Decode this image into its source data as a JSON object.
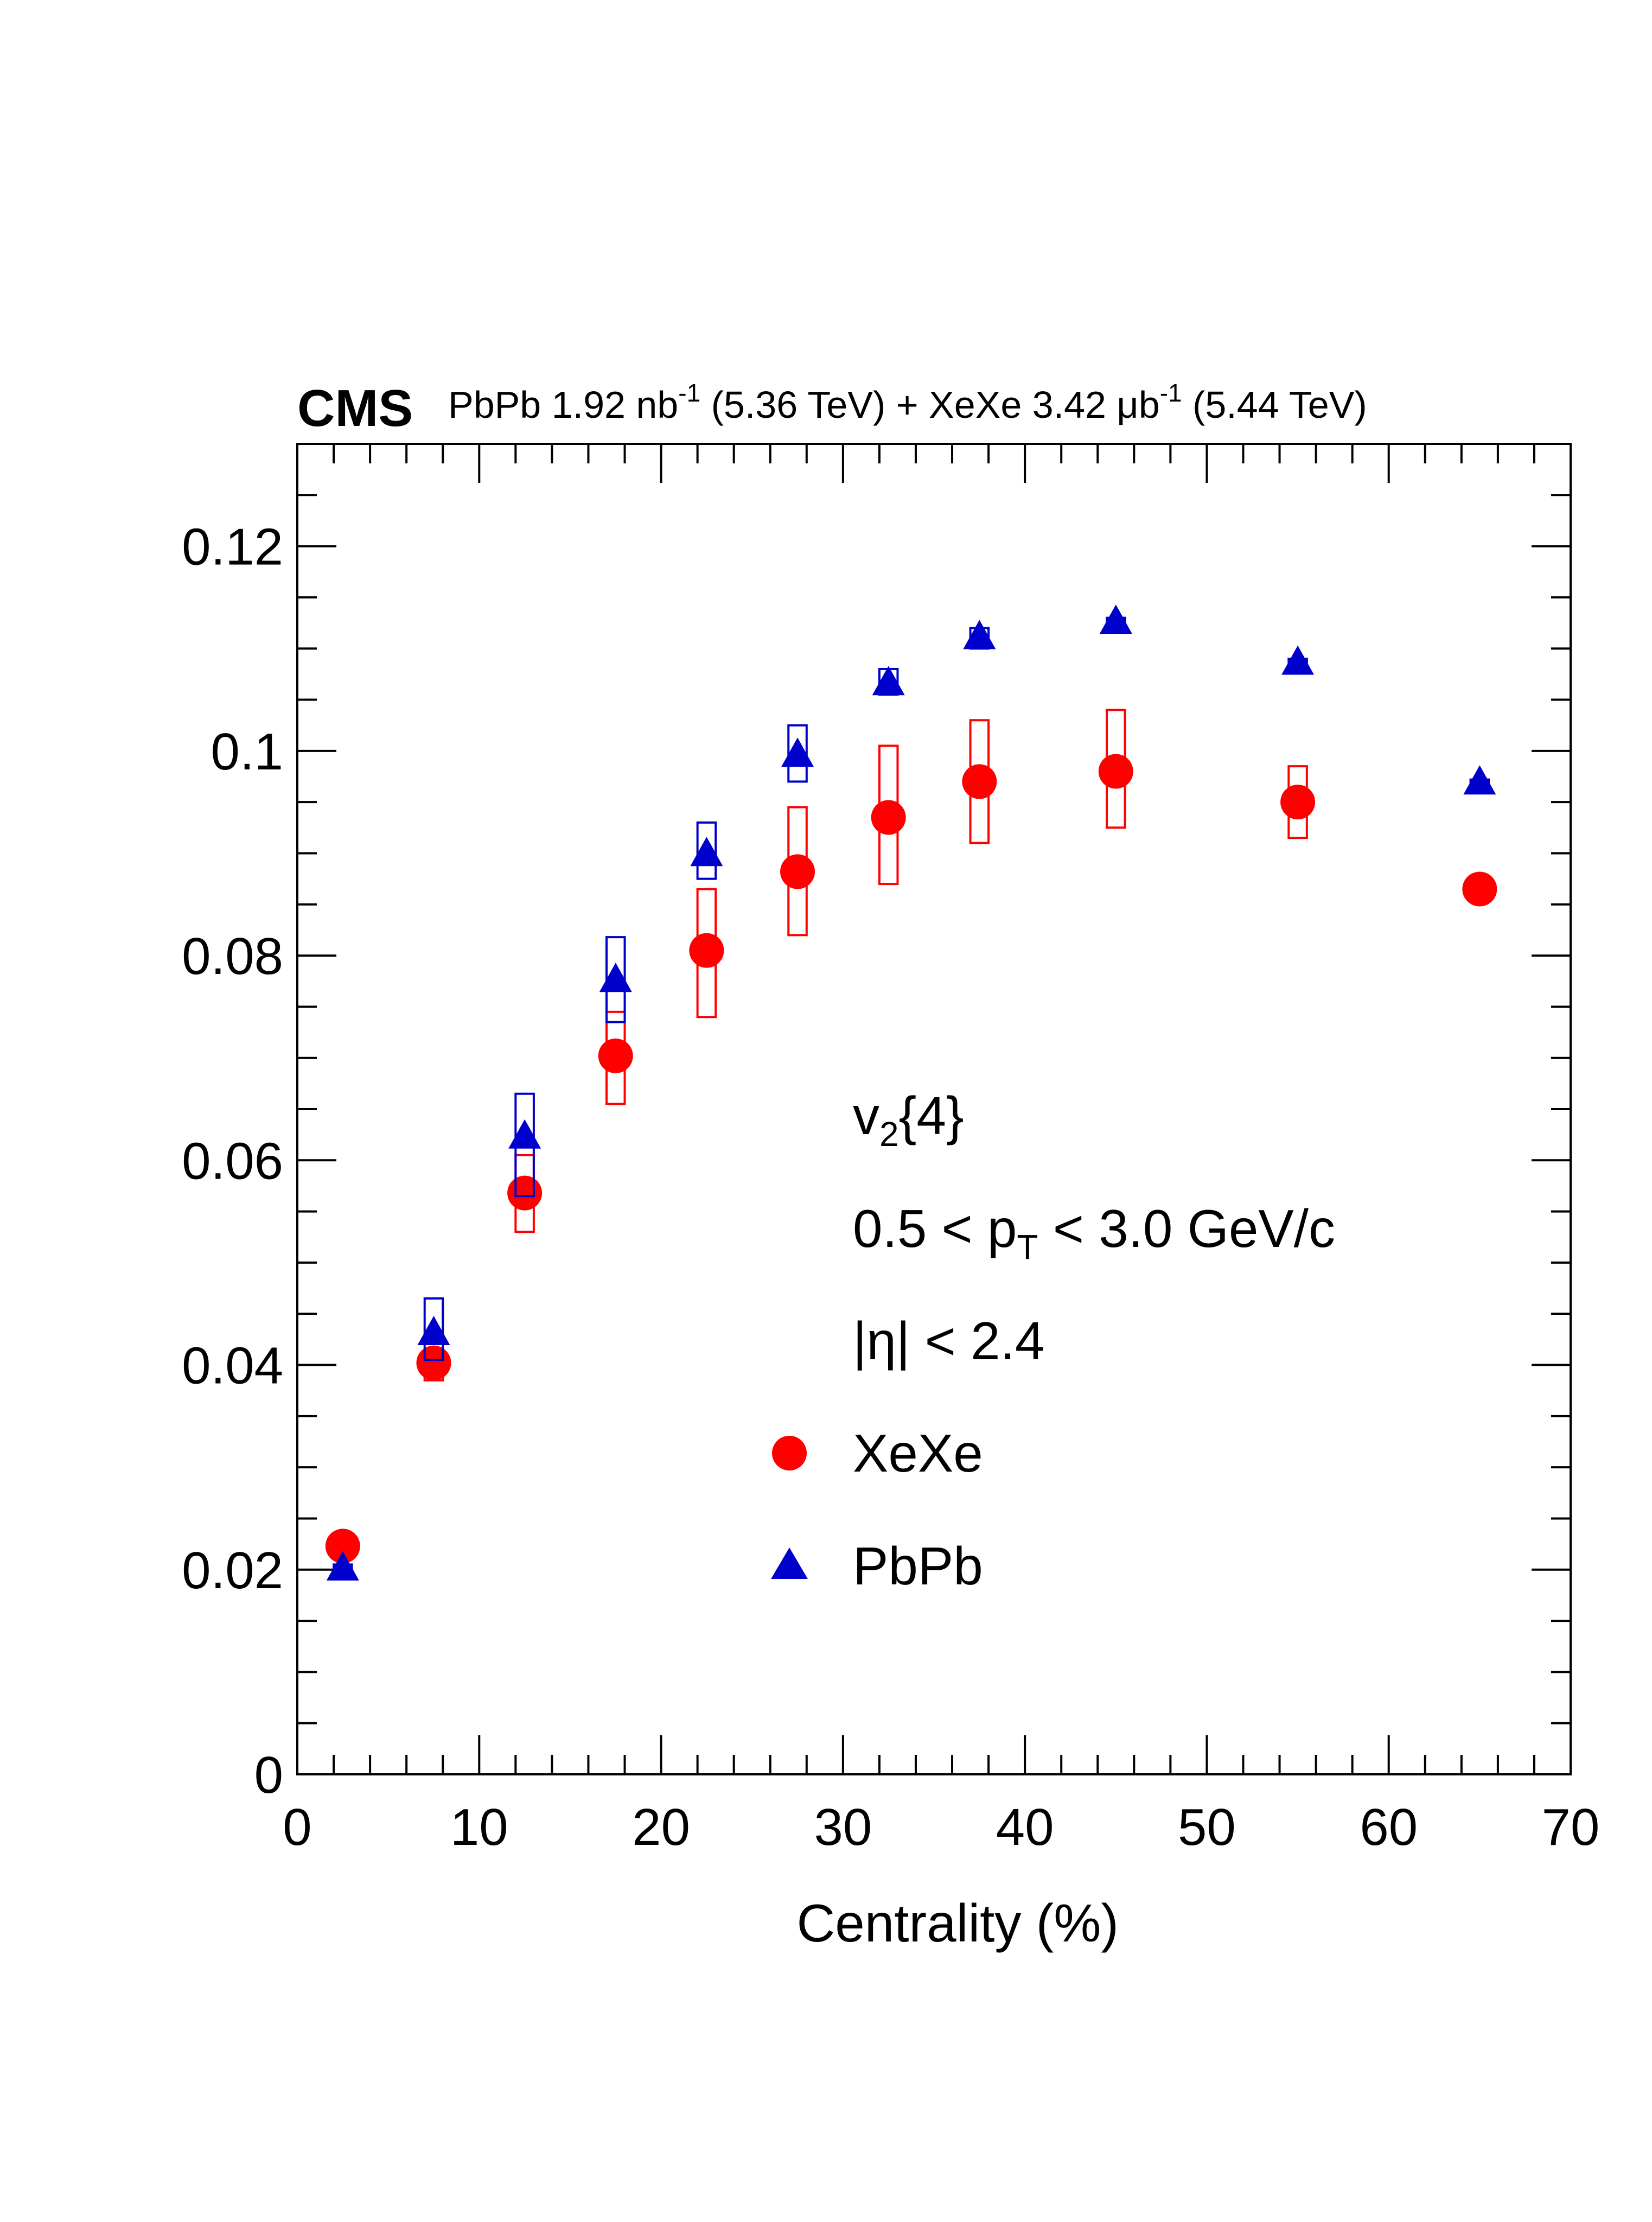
{
  "header": {
    "experiment": "CMS",
    "lumi_line": {
      "part1": "PbPb 1.92 nb",
      "sup1": "-1",
      "part2": " (5.36 TeV) + XeXe 3.42 μb",
      "sup2": "-1",
      "part3": " (5.44 TeV)"
    }
  },
  "legend": {
    "observable_main": "v",
    "observable_sub": "2",
    "observable_rest": "{4}",
    "pt_left": "0.5 < p",
    "pt_sub": "T",
    "pt_right": " < 3.0 GeV/c",
    "eta_cut": "|η| < 2.4",
    "xexe_label": "XeXe",
    "pbpb_label": "PbPb"
  },
  "colors": {
    "xexe": "#ff0000",
    "pbpb": "#0000cc",
    "axis": "#000000"
  },
  "chart_data": {
    "type": "scatter",
    "title": "",
    "xlabel": "Centrality (%)",
    "ylabel": "",
    "xlim": [
      0,
      70
    ],
    "ylim": [
      0,
      0.13
    ],
    "x_ticks": [
      0,
      10,
      20,
      30,
      40,
      50,
      60,
      70
    ],
    "x_tick_labels": [
      "0",
      "10",
      "20",
      "30",
      "40",
      "50",
      "60",
      "70"
    ],
    "y_ticks": [
      0,
      0.02,
      0.04,
      0.06,
      0.08,
      0.1,
      0.12
    ],
    "y_tick_labels": [
      "0",
      "0.02",
      "0.04",
      "0.06",
      "0.08",
      "0.1",
      "0.12"
    ],
    "series": [
      {
        "name": "XeXe",
        "marker": "circle",
        "color": "#ff0000",
        "x": [
          2.5,
          7.5,
          12.5,
          17.5,
          22.5,
          27.5,
          32.5,
          37.5,
          45,
          55,
          65
        ],
        "values": [
          0.0223,
          0.0402,
          0.0568,
          0.0702,
          0.0805,
          0.0882,
          0.0935,
          0.097,
          0.098,
          0.095,
          0.0865
        ],
        "sys_low": [
          0.0213,
          0.0385,
          0.053,
          0.0655,
          0.074,
          0.082,
          0.087,
          0.091,
          0.0925,
          0.0915,
          0.0855
        ],
        "sys_high": [
          0.0233,
          0.0415,
          0.0605,
          0.0745,
          0.0865,
          0.0945,
          0.1005,
          0.103,
          0.104,
          0.0985,
          0.0875
        ],
        "sys_bin_width": [
          1.0,
          1.0,
          1.0,
          1.0,
          1.0,
          1.0,
          1.0,
          1.0,
          1.0,
          1.0,
          1.0
        ]
      },
      {
        "name": "PbPb",
        "marker": "triangle",
        "color": "#0000cc",
        "x": [
          2.5,
          7.5,
          12.5,
          17.5,
          22.5,
          27.5,
          32.5,
          37.5,
          45,
          55,
          65
        ],
        "values": [
          0.02,
          0.043,
          0.0622,
          0.0775,
          0.0898,
          0.0995,
          0.1065,
          0.111,
          0.1125,
          0.1085,
          0.0968
        ],
        "sys_low": [
          0.0195,
          0.0405,
          0.0565,
          0.0735,
          0.0875,
          0.097,
          0.1055,
          0.11,
          0.112,
          0.108,
          0.0962
        ],
        "sys_high": [
          0.0205,
          0.0465,
          0.0665,
          0.0818,
          0.093,
          0.1025,
          0.108,
          0.112,
          0.113,
          0.109,
          0.0972
        ],
        "sys_bin_width": [
          1.0,
          1.0,
          1.0,
          1.0,
          1.0,
          1.0,
          1.0,
          1.0,
          1.0,
          1.0,
          1.0
        ]
      }
    ]
  }
}
